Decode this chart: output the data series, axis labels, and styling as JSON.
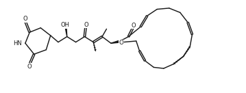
{
  "bg": "#ffffff",
  "lc": "#1a1a1a",
  "lw": 1.05,
  "fs": 6.0,
  "figsize": [
    3.59,
    1.36
  ],
  "dpi": 100,
  "xlim": [
    -2,
    102
  ],
  "ylim": [
    -2,
    40
  ]
}
